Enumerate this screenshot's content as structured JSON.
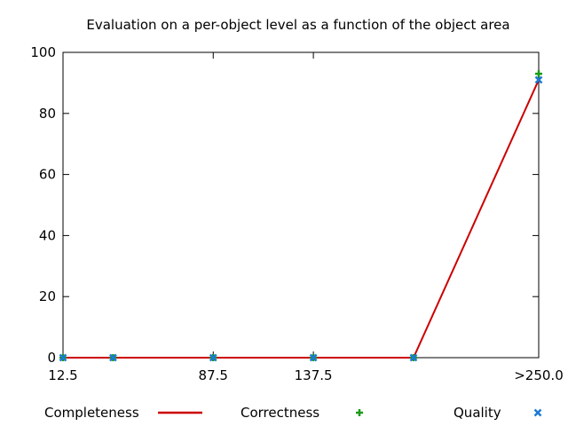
{
  "chart_data": {
    "type": "line",
    "title": "Evaluation on a per-object level as a function of the object area",
    "xlabel": "",
    "ylabel": "",
    "x_tick_labels": [
      {
        "x": 12.5,
        "label": "12.5"
      },
      {
        "x": 87.5,
        "label": "87.5"
      },
      {
        "x": 137.5,
        "label": "137.5"
      },
      {
        "x": 250.0,
        "label": ">250.0"
      }
    ],
    "y_ticks": [
      0,
      20,
      40,
      60,
      80,
      100
    ],
    "xlim": [
      12.5,
      250.0
    ],
    "ylim": [
      0,
      100
    ],
    "grid": false,
    "legend_position": "bottom",
    "series": [
      {
        "name": "Completeness",
        "style": "line",
        "color": "#cc0000",
        "x": [
          12.5,
          37.5,
          87.5,
          137.5,
          187.5,
          250.0
        ],
        "values": [
          0,
          0,
          0,
          0,
          0,
          91
        ]
      },
      {
        "name": "Correctness",
        "style": "plus",
        "color": "#1a9c1a",
        "x": [
          12.5,
          37.5,
          87.5,
          137.5,
          187.5,
          250.0
        ],
        "values": [
          0,
          0,
          0,
          0,
          0,
          93
        ]
      },
      {
        "name": "Quality",
        "style": "cross",
        "color": "#1a7ad4",
        "x": [
          12.5,
          37.5,
          87.5,
          137.5,
          187.5,
          250.0
        ],
        "values": [
          0,
          0,
          0,
          0,
          0,
          91
        ]
      }
    ]
  }
}
